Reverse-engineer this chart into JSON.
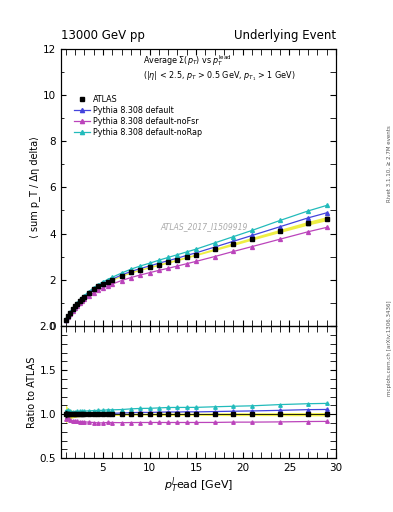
{
  "title_left": "13000 GeV pp",
  "title_right": "Underlying Event",
  "ylabel_main": "⟨ sum p_T / Δη delta⟩",
  "ylabel_ratio": "Ratio to ATLAS",
  "xlabel": "p$_T^l$ead [GeV]",
  "right_label": "mcplots.cern.ch [arXiv:1306.3436]",
  "right_label2": "Rivet 3.1.10, ≥ 2.7M events",
  "watermark": "ATLAS_2017_I1509919",
  "ylim_main": [
    0,
    12
  ],
  "ylim_ratio": [
    0.5,
    2.0
  ],
  "yticks_main": [
    0,
    2,
    4,
    6,
    8,
    10,
    12
  ],
  "yticks_ratio": [
    0.5,
    1.0,
    1.5,
    2.0
  ],
  "xlim": [
    0.5,
    30
  ],
  "legend_entries": [
    "ATLAS",
    "Pythia 8.308 default",
    "Pythia 8.308 default-noFsr",
    "Pythia 8.308 default-noRap"
  ],
  "data_x": [
    1.0,
    1.25,
    1.5,
    1.75,
    2.0,
    2.25,
    2.5,
    2.75,
    3.0,
    3.5,
    4.0,
    4.5,
    5.0,
    5.5,
    6.0,
    7.0,
    8.0,
    9.0,
    10.0,
    11.0,
    12.0,
    13.0,
    14.0,
    15.0,
    17.0,
    19.0,
    21.0,
    24.0,
    27.0,
    29.0
  ],
  "data_atlas_y": [
    0.28,
    0.42,
    0.57,
    0.72,
    0.85,
    0.97,
    1.08,
    1.18,
    1.27,
    1.44,
    1.59,
    1.72,
    1.83,
    1.92,
    2.01,
    2.18,
    2.32,
    2.44,
    2.55,
    2.66,
    2.76,
    2.87,
    2.98,
    3.09,
    3.32,
    3.55,
    3.78,
    4.12,
    4.45,
    4.65
  ],
  "data_atlas_yerr": [
    0.01,
    0.01,
    0.01,
    0.01,
    0.01,
    0.01,
    0.01,
    0.01,
    0.01,
    0.01,
    0.01,
    0.01,
    0.01,
    0.01,
    0.01,
    0.01,
    0.01,
    0.01,
    0.01,
    0.02,
    0.02,
    0.02,
    0.02,
    0.02,
    0.03,
    0.04,
    0.04,
    0.05,
    0.06,
    0.07
  ],
  "data_atlas_band": [
    0.03,
    0.03,
    0.03,
    0.03,
    0.03,
    0.03,
    0.03,
    0.03,
    0.03,
    0.03,
    0.03,
    0.03,
    0.03,
    0.03,
    0.03,
    0.03,
    0.03,
    0.03,
    0.03,
    0.04,
    0.04,
    0.04,
    0.04,
    0.04,
    0.05,
    0.06,
    0.06,
    0.07,
    0.08,
    0.09
  ],
  "data_default_y": [
    0.285,
    0.43,
    0.575,
    0.72,
    0.855,
    0.975,
    1.085,
    1.185,
    1.275,
    1.445,
    1.595,
    1.725,
    1.84,
    1.94,
    2.03,
    2.21,
    2.36,
    2.49,
    2.6,
    2.72,
    2.83,
    2.94,
    3.06,
    3.17,
    3.42,
    3.67,
    3.92,
    4.3,
    4.68,
    4.9
  ],
  "data_noFsr_y": [
    0.265,
    0.4,
    0.535,
    0.665,
    0.785,
    0.89,
    0.99,
    1.08,
    1.16,
    1.31,
    1.44,
    1.55,
    1.65,
    1.74,
    1.82,
    1.97,
    2.1,
    2.21,
    2.31,
    2.41,
    2.5,
    2.6,
    2.7,
    2.8,
    3.01,
    3.23,
    3.44,
    3.76,
    4.08,
    4.27
  ],
  "data_noRap_y": [
    0.29,
    0.44,
    0.59,
    0.74,
    0.875,
    1.0,
    1.115,
    1.22,
    1.315,
    1.495,
    1.655,
    1.795,
    1.91,
    2.015,
    2.11,
    2.295,
    2.46,
    2.6,
    2.72,
    2.85,
    2.97,
    3.09,
    3.21,
    3.33,
    3.6,
    3.87,
    4.14,
    4.57,
    4.98,
    5.22
  ],
  "color_atlas": "#000000",
  "color_default": "#4444dd",
  "color_noFsr": "#bb44bb",
  "color_noRap": "#22bbbb",
  "color_band": "#eeee44",
  "marker_atlas": "s",
  "marker_mc": "^"
}
